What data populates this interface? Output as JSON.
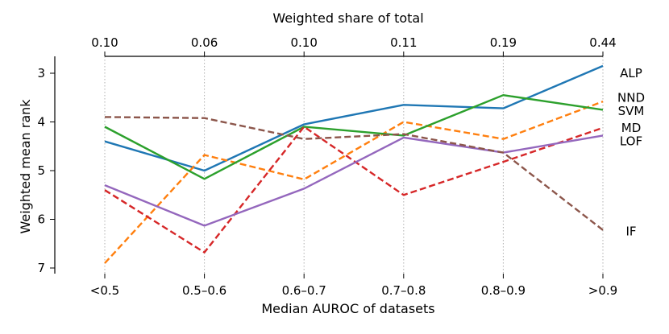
{
  "chart_data": {
    "type": "line",
    "title": "",
    "xlabel": "Median AUROC of datasets",
    "ylabel": "Weighted mean rank",
    "top_xlabel": "Weighted share of total",
    "categories": [
      "<0.5",
      "0.5–0.6",
      "0.6–0.7",
      "0.7–0.8",
      "0.8–0.9",
      ">0.9"
    ],
    "top_ticks": [
      "0.10",
      "0.06",
      "0.10",
      "0.11",
      "0.19",
      "0.44"
    ],
    "y_ticks": [
      "3",
      "4",
      "5",
      "6",
      "7"
    ],
    "ylim": [
      2.7,
      7.05
    ],
    "y_inverted": true,
    "grid": "vertical dotted",
    "series": [
      {
        "name": "ALP",
        "color": "#1f77b4",
        "dash": "solid",
        "values": [
          4.4,
          5.0,
          4.05,
          3.65,
          3.72,
          2.85
        ]
      },
      {
        "name": "NND",
        "color": "#ff7f0e",
        "dash": "dashed",
        "values": [
          6.9,
          4.68,
          5.18,
          4.0,
          4.35,
          3.58
        ]
      },
      {
        "name": "SVM",
        "color": "#2ca02c",
        "dash": "solid",
        "values": [
          4.1,
          5.17,
          4.1,
          4.28,
          3.45,
          3.75
        ]
      },
      {
        "name": "MD",
        "color": "#d62728",
        "dash": "dashed",
        "values": [
          5.4,
          6.68,
          4.1,
          5.5,
          4.82,
          4.12
        ]
      },
      {
        "name": "LOF",
        "color": "#9467bd",
        "dash": "solid",
        "values": [
          5.3,
          6.13,
          5.37,
          4.32,
          4.63,
          4.28
        ]
      },
      {
        "name": "IF",
        "color": "#8c564b",
        "dash": "dashed",
        "values": [
          3.9,
          3.92,
          4.35,
          4.25,
          4.63,
          6.22
        ]
      }
    ]
  }
}
